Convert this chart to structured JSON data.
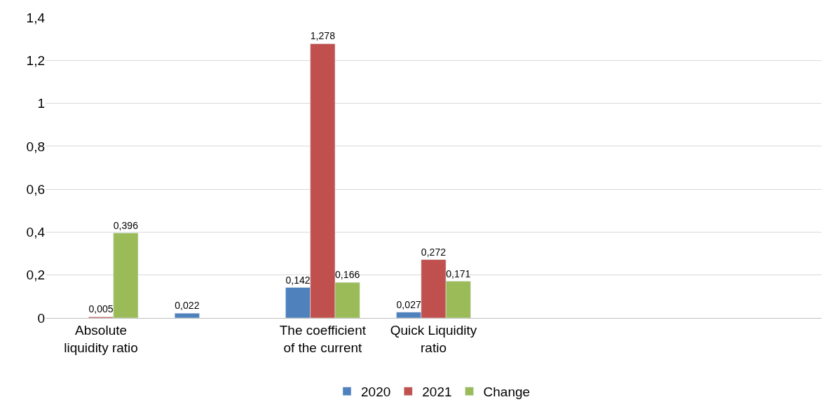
{
  "chart_data": {
    "type": "bar",
    "categories": [
      "Absolute liquidity ratio",
      null,
      "The coefficient of the current",
      "Quick Liquidity ratio",
      null,
      null,
      null
    ],
    "series": [
      {
        "name": "2020",
        "color": "#4f81bd",
        "values": [
          null,
          0.022,
          0.142,
          0.027,
          null,
          null,
          null
        ],
        "value_labels": [
          null,
          "0,022",
          "0,142",
          "0,027",
          null,
          null,
          null
        ]
      },
      {
        "name": "2021",
        "color": "#c0504d",
        "values": [
          0.005,
          null,
          1.278,
          0.272,
          null,
          null,
          null
        ],
        "value_labels": [
          "0,005",
          null,
          "1,278",
          "0,272",
          null,
          null,
          null
        ]
      },
      {
        "name": "Change",
        "color": "#9bbb59",
        "values": [
          0.396,
          null,
          0.166,
          0.171,
          null,
          null,
          null
        ],
        "value_labels": [
          "0,396",
          null,
          "0,166",
          "0,171",
          null,
          null,
          null
        ]
      }
    ],
    "ylim": [
      0,
      1.4
    ],
    "yticks": [
      0,
      {
        "value": 0.2,
        "label": "0,2"
      },
      {
        "value": 0.4,
        "label": "0,4"
      },
      {
        "value": 0.6,
        "label": "0,6"
      },
      {
        "value": 0.8,
        "label": "0,8"
      },
      1,
      {
        "value": 1.2,
        "label": "1,2"
      },
      {
        "value": 1.4,
        "label": "1,4"
      }
    ],
    "grid": "y",
    "legend": "bottom"
  }
}
